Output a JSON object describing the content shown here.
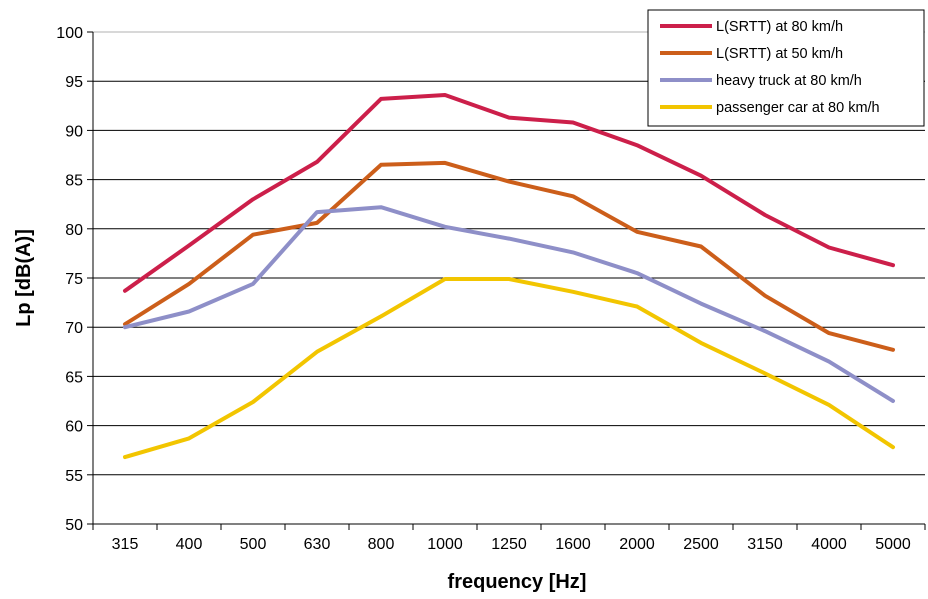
{
  "chart_data": {
    "type": "line",
    "xlabel": "frequency [Hz]",
    "ylabel": "Lp [dB(A)]",
    "categories": [
      "315",
      "400",
      "500",
      "630",
      "800",
      "1000",
      "1250",
      "1600",
      "2000",
      "2500",
      "3150",
      "4000",
      "5000"
    ],
    "ylim": [
      50,
      100
    ],
    "yticks": [
      "50",
      "55",
      "60",
      "65",
      "70",
      "75",
      "80",
      "85",
      "90",
      "95",
      "100"
    ],
    "grid": "horizontal",
    "legend_position": "top-right",
    "series": [
      {
        "name": "L(SRTT) at 80 km/h",
        "color": "#cc1f4a",
        "values": [
          73.7,
          78.3,
          83.0,
          86.8,
          93.2,
          93.6,
          91.3,
          90.8,
          88.5,
          85.4,
          81.4,
          78.1,
          76.3
        ]
      },
      {
        "name": "L(SRTT) at 50 km/h",
        "color": "#cc5e1a",
        "values": [
          70.3,
          74.4,
          79.4,
          80.6,
          86.5,
          86.7,
          84.8,
          83.3,
          79.7,
          78.2,
          73.2,
          69.4,
          67.7
        ]
      },
      {
        "name": "heavy truck at 80 km/h",
        "color": "#8e8fc8",
        "values": [
          70.0,
          71.6,
          74.4,
          81.7,
          82.2,
          80.2,
          79.0,
          77.6,
          75.5,
          72.4,
          69.6,
          66.5,
          62.5
        ]
      },
      {
        "name": "passenger car at 80 km/h",
        "color": "#f2c500",
        "values": [
          56.8,
          58.7,
          62.4,
          67.5,
          71.1,
          74.9,
          74.9,
          73.6,
          72.1,
          68.4,
          65.3,
          62.1,
          57.8
        ]
      }
    ]
  }
}
